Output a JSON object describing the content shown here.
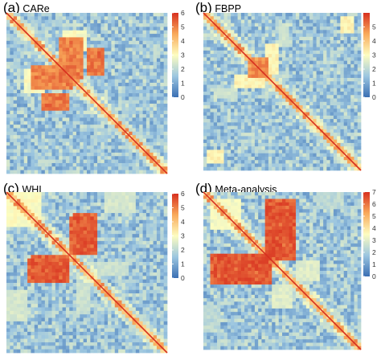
{
  "figure": {
    "colors": {
      "low": "#3a6fb4",
      "mid_low": "#9cc6e0",
      "mid": "#fdfdc0",
      "mid_high": "#f9a95a",
      "high": "#d7301f"
    }
  },
  "chart_data": [
    {
      "type": "heatmap",
      "panel_letter": "(a)",
      "title": "CARe",
      "colorbar": {
        "min": 0,
        "max": 6,
        "ticks": [
          "0",
          "1",
          "2",
          "3",
          "4",
          "5",
          "6"
        ]
      },
      "blocks": [
        {
          "rows": [
            0.22,
            0.38
          ],
          "cols": [
            0.5,
            0.6
          ],
          "value": 5.6
        },
        {
          "rows": [
            0.33,
            0.46
          ],
          "cols": [
            0.16,
            0.4
          ],
          "value": 5.4
        },
        {
          "rows": [
            0.12,
            0.22
          ],
          "cols": [
            0.36,
            0.48
          ],
          "value": 3.2
        },
        {
          "rows": [
            0.55,
            0.62
          ],
          "cols": [
            0.72,
            0.8
          ],
          "value": 1.8
        }
      ]
    },
    {
      "type": "heatmap",
      "panel_letter": "(b)",
      "title": "FBPP",
      "colorbar": {
        "min": 0,
        "max": 6,
        "ticks": [
          "0",
          "1",
          "2",
          "3",
          "4",
          "5"
        ]
      },
      "blocks": [
        {
          "rows": [
            0.41,
            0.47
          ],
          "cols": [
            0.2,
            0.38
          ],
          "value": 3.4
        },
        {
          "rows": [
            0.3,
            0.4
          ],
          "cols": [
            0.32,
            0.4
          ],
          "value": 5.2
        },
        {
          "rows": [
            0.48,
            0.54
          ],
          "cols": [
            0.08,
            0.2
          ],
          "value": 2.5
        },
        {
          "rows": [
            0.88,
            0.94
          ],
          "cols": [
            0.04,
            0.12
          ],
          "value": 3.4
        }
      ]
    },
    {
      "type": "heatmap",
      "panel_letter": "(c)",
      "title": "WHI",
      "colorbar": {
        "min": 0,
        "max": 6,
        "ticks": [
          "0",
          "1",
          "2",
          "3",
          "4",
          "5",
          "6"
        ]
      },
      "blocks": [
        {
          "rows": [
            0.15,
            0.39
          ],
          "cols": [
            0.42,
            0.55
          ],
          "value": 5.8
        },
        {
          "rows": [
            0.4,
            0.53
          ],
          "cols": [
            0.17,
            0.38
          ],
          "value": 5.8
        },
        {
          "rows": [
            0.05,
            0.2
          ],
          "cols": [
            0.02,
            0.16
          ],
          "value": 3.2
        },
        {
          "rows": [
            0.62,
            0.8
          ],
          "cols": [
            0.02,
            0.12
          ],
          "value": 2.6
        },
        {
          "rows": [
            0.58,
            0.74
          ],
          "cols": [
            0.44,
            0.52
          ],
          "value": 2.4
        }
      ]
    },
    {
      "type": "heatmap",
      "panel_letter": "(d)",
      "title": "Meta-analysis",
      "colorbar": {
        "min": 0,
        "max": 7,
        "ticks": [
          "0",
          "1",
          "2",
          "3",
          "4",
          "5",
          "6",
          "7"
        ]
      },
      "blocks": [
        {
          "rows": [
            0.08,
            0.42
          ],
          "cols": [
            0.4,
            0.58
          ],
          "value": 6.8
        },
        {
          "rows": [
            0.4,
            0.58
          ],
          "cols": [
            0.05,
            0.42
          ],
          "value": 6.8
        },
        {
          "rows": [
            0.08,
            0.22
          ],
          "cols": [
            0.05,
            0.18
          ],
          "value": 3.6
        },
        {
          "rows": [
            0.6,
            0.72
          ],
          "cols": [
            0.44,
            0.56
          ],
          "value": 3.2
        },
        {
          "rows": [
            0.72,
            0.88
          ],
          "cols": [
            0.02,
            0.1
          ],
          "value": 2.4
        }
      ]
    }
  ]
}
